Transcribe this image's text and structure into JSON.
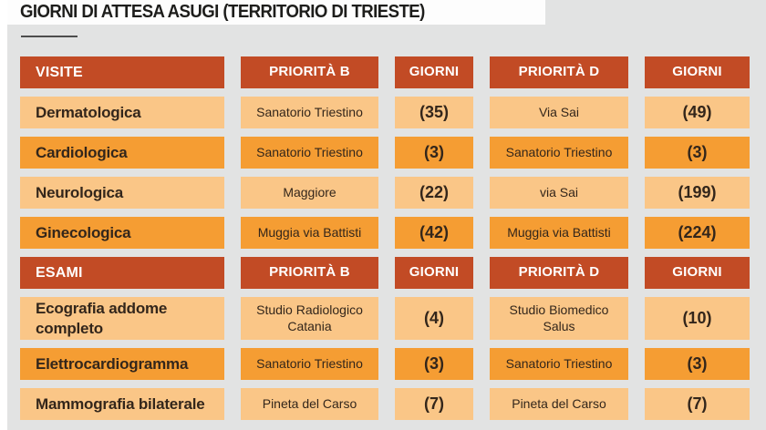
{
  "title": "GIORNI DI ATTESA ASUGI (TERRITORIO DI TRIESTE)",
  "colors": {
    "header_bg": "#c24b25",
    "row_light": "#fac687",
    "row_dark": "#f59d33",
    "background": "#e2e3e3",
    "header_text": "#ffffff",
    "cell_text": "#33261b",
    "title_text": "#1d1d1b"
  },
  "chart_data": {
    "type": "table",
    "title": "GIORNI DI ATTESA ASUGI (TERRITORIO DI TRIESTE)",
    "sections": [
      {
        "header": [
          "VISITE",
          "PRIORITÀ B",
          "GIORNI",
          "PRIORITÀ D",
          "GIORNI"
        ],
        "rows": [
          {
            "name": "Dermatologica",
            "priorita_b": "Sanatorio Triestino",
            "giorni_b": "(35)",
            "priorita_d": "Via Sai",
            "giorni_d": "(49)",
            "shade": "light",
            "tall": false
          },
          {
            "name": "Cardiologica",
            "priorita_b": "Sanatorio Triestino",
            "giorni_b": "(3)",
            "priorita_d": "Sanatorio Triestino",
            "giorni_d": "(3)",
            "shade": "dark",
            "tall": false
          },
          {
            "name": "Neurologica",
            "priorita_b": "Maggiore",
            "giorni_b": "(22)",
            "priorita_d": "via Sai",
            "giorni_d": "(199)",
            "shade": "light",
            "tall": false
          },
          {
            "name": "Ginecologica",
            "priorita_b": "Muggia via Battisti",
            "giorni_b": "(42)",
            "priorita_d": "Muggia via Battisti",
            "giorni_d": "(224)",
            "shade": "dark",
            "tall": false
          }
        ]
      },
      {
        "header": [
          "ESAMI",
          "PRIORITÀ B",
          "GIORNI",
          "PRIORITÀ D",
          "GIORNI"
        ],
        "rows": [
          {
            "name": "Ecografia addome completo",
            "priorita_b": "Studio Radiologico Catania",
            "giorni_b": "(4)",
            "priorita_d": "Studio Biomedico Salus",
            "giorni_d": "(10)",
            "shade": "light",
            "tall": true
          },
          {
            "name": "Elettrocardiogramma",
            "priorita_b": "Sanatorio Triestino",
            "giorni_b": "(3)",
            "priorita_d": "Sanatorio Triestino",
            "giorni_d": "(3)",
            "shade": "dark",
            "tall": false
          },
          {
            "name": "Mammografia bilaterale",
            "priorita_b": "Pineta del Carso",
            "giorni_b": "(7)",
            "priorita_d": "Pineta del Carso",
            "giorni_d": "(7)",
            "shade": "light",
            "tall": false
          }
        ]
      }
    ]
  }
}
